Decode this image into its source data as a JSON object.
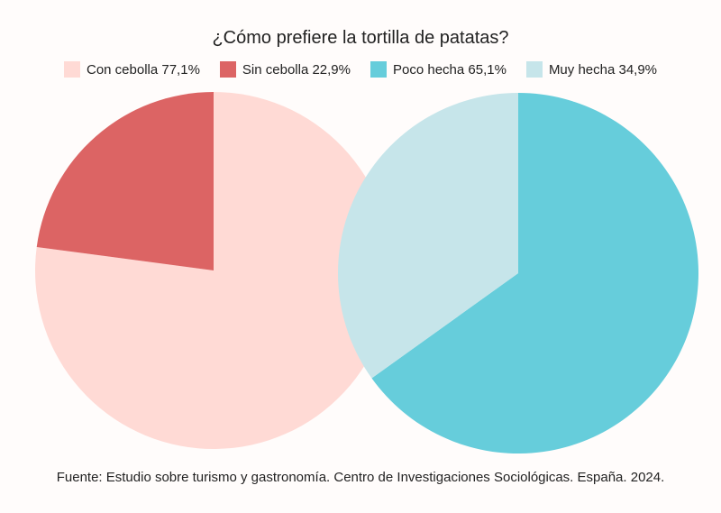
{
  "chart_data": [
    {
      "type": "pie",
      "group": "cebolla",
      "series": [
        {
          "name": "Con cebolla 77,1%",
          "label": "Con cebolla",
          "value": 77.1,
          "color": "#ffdad5"
        },
        {
          "name": "Sin cebolla 22,9%",
          "label": "Sin cebolla",
          "value": 22.9,
          "color": "#dc6464"
        }
      ]
    },
    {
      "type": "pie",
      "group": "punto",
      "series": [
        {
          "name": "Poco hecha 65,1%",
          "label": "Poco hecha",
          "value": 65.1,
          "color": "#66cddb"
        },
        {
          "name": "Muy hecha 34,9%",
          "label": "Muy hecha",
          "value": 34.9,
          "color": "#c6e5ea"
        }
      ]
    }
  ],
  "title": "¿Cómo prefiere la tortilla de patatas?",
  "legend": [
    {
      "label": "Con cebolla 77,1%",
      "color": "#ffdad5"
    },
    {
      "label": "Sin cebolla 22,9%",
      "color": "#dc6464"
    },
    {
      "label": "Poco hecha 65,1%",
      "color": "#66cddb"
    },
    {
      "label": "Muy hecha 34,9%",
      "color": "#c6e5ea"
    }
  ],
  "caption": "Fuente: Estudio sobre turismo y gastronomía. Centro de Investigaciones Sociológicas. España. 2024.",
  "background_color": "#fffcfb"
}
